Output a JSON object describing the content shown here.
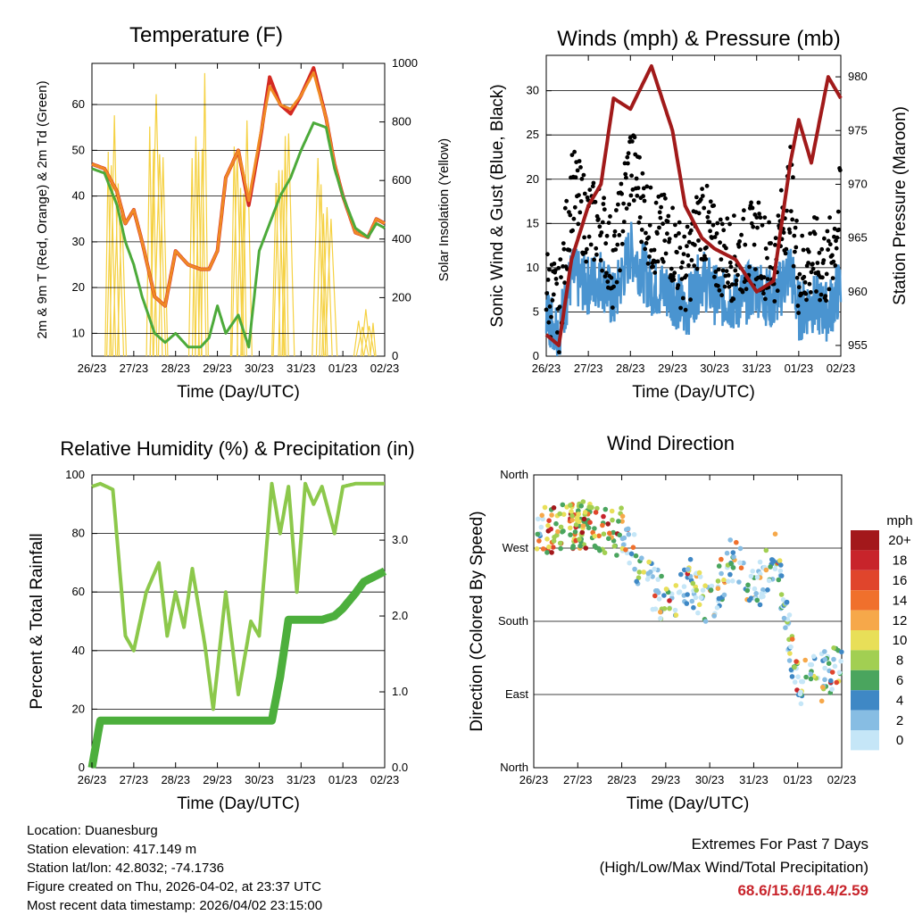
{
  "x_ticks": [
    "26/23",
    "27/23",
    "28/23",
    "29/23",
    "30/23",
    "31/23",
    "01/23",
    "02/23"
  ],
  "x_axis_label": "Time (Day/UTC)",
  "chart_data": [
    {
      "id": "temperature",
      "type": "line",
      "title": "Temperature (F)",
      "ylabel": "2m & 9m T (Red, Orange) & 2m Td (Green)",
      "ylabel_right": "Solar Insolation (Yellow)",
      "ylim": [
        5,
        69
      ],
      "yticks": [
        10,
        20,
        30,
        40,
        50,
        60
      ],
      "y2lim": [
        0,
        1000
      ],
      "y2ticks": [
        0,
        200,
        400,
        600,
        800,
        1000
      ],
      "x_days": [
        0,
        0.3,
        0.6,
        0.8,
        1.0,
        1.2,
        1.5,
        1.75,
        2.0,
        2.3,
        2.6,
        2.8,
        3.0,
        3.2,
        3.5,
        3.75,
        4.0,
        4.25,
        4.5,
        4.75,
        5.0,
        5.3,
        5.6,
        5.8,
        6.0,
        6.3,
        6.6,
        6.8,
        7.0
      ],
      "series": [
        {
          "name": "2m T",
          "color": "#d42a22",
          "values": [
            47,
            46,
            41,
            34,
            37,
            30,
            18,
            16,
            28,
            25,
            24,
            24,
            28,
            44,
            50,
            38,
            51,
            66,
            60,
            58,
            62,
            68,
            57,
            47,
            40,
            32,
            31,
            35,
            34
          ]
        },
        {
          "name": "9m T",
          "color": "#f08a24",
          "values": [
            47,
            46,
            41,
            34,
            37,
            30,
            18,
            16,
            28,
            25,
            24,
            24,
            28,
            44,
            50,
            39,
            52,
            64,
            60,
            59,
            62,
            67,
            57,
            47,
            40,
            32,
            31,
            35,
            34
          ]
        },
        {
          "name": "2m Td",
          "color": "#4caa3a",
          "values": [
            46,
            45,
            38,
            30,
            25,
            18,
            10,
            8,
            10,
            7,
            7,
            9,
            16,
            10,
            14,
            7,
            28,
            34,
            40,
            44,
            50,
            56,
            55,
            46,
            40,
            33,
            31,
            34,
            33
          ]
        }
      ],
      "solar": {
        "name": "Solar Insolation",
        "color": "#f5d142",
        "day_peaks": [
          {
            "day": 0.55,
            "peak": 870
          },
          {
            "day": 1.55,
            "peak": 920
          },
          {
            "day": 2.55,
            "peak": 1000
          },
          {
            "day": 3.55,
            "peak": 940
          },
          {
            "day": 4.55,
            "peak": 850
          },
          {
            "day": 5.55,
            "peak": 700
          },
          {
            "day": 6.55,
            "peak": 170
          }
        ]
      }
    },
    {
      "id": "winds",
      "type": "line",
      "title": "Winds (mph) & Pressure (mb)",
      "ylabel": "Sonic Wind & Gust (Blue, Black)",
      "ylabel_right": "Station Pressure (Maroon)",
      "ylim": [
        0,
        34
      ],
      "yticks": [
        0,
        5,
        10,
        15,
        20,
        25,
        30
      ],
      "y2lim": [
        954,
        982
      ],
      "y2ticks": [
        955,
        960,
        965,
        970,
        975,
        980
      ],
      "x_days": [
        0,
        0.3,
        0.6,
        1.0,
        1.3,
        1.6,
        2.0,
        2.5,
        3.0,
        3.3,
        3.7,
        4.0,
        4.5,
        5.0,
        5.4,
        5.8,
        6.0,
        6.3,
        6.7,
        7.0
      ],
      "series": [
        {
          "name": "Sonic Wind",
          "color": "#4a94d0",
          "values": [
            5,
            3,
            9,
            8,
            9,
            6,
            12,
            8,
            7,
            5,
            9,
            7,
            6,
            8,
            6,
            10,
            5,
            6,
            5,
            8
          ]
        },
        {
          "name": "Gust",
          "color": "#000000",
          "values": [
            8,
            5,
            19,
            15,
            15,
            10,
            22,
            14,
            13,
            9,
            16,
            12,
            11,
            13,
            10,
            19,
            9,
            11,
            10,
            17
          ]
        },
        {
          "name": "Station Pressure",
          "color": "#a11a1a",
          "values": [
            956,
            955,
            963,
            968,
            970,
            978,
            977,
            981,
            975,
            968,
            965,
            964,
            963,
            960,
            961,
            972,
            976,
            972,
            980,
            978
          ]
        }
      ]
    },
    {
      "id": "humidity",
      "type": "line",
      "title": "Relative Humidity (%) & Precipitation (in)",
      "ylabel": "Percent & Total Rainfall",
      "ylim": [
        0,
        100
      ],
      "yticks": [
        0,
        20,
        40,
        60,
        80,
        100
      ],
      "y2lim": [
        0,
        3.86
      ],
      "y2ticks": [
        0.0,
        1.0,
        2.0,
        3.0
      ],
      "x_days": [
        0,
        0.2,
        0.5,
        0.8,
        1.0,
        1.3,
        1.6,
        1.8,
        2.0,
        2.2,
        2.4,
        2.7,
        2.9,
        3.2,
        3.5,
        3.8,
        4.0,
        4.3,
        4.5,
        4.7,
        4.9,
        5.1,
        5.3,
        5.5,
        5.8,
        6.0,
        6.3,
        6.5,
        7.0
      ],
      "series": [
        {
          "name": "Relative Humidity",
          "color": "#8cc84b",
          "values": [
            96,
            97,
            95,
            45,
            40,
            60,
            70,
            45,
            60,
            48,
            68,
            42,
            20,
            60,
            25,
            50,
            45,
            97,
            80,
            96,
            60,
            97,
            90,
            96,
            80,
            96,
            97,
            97,
            97
          ]
        },
        {
          "name": "Total Precipitation",
          "color": "#4caf3c",
          "values": [
            0.0,
            0.62,
            0.62,
            0.62,
            0.62,
            0.62,
            0.62,
            0.62,
            0.62,
            0.62,
            0.62,
            0.62,
            0.62,
            0.62,
            0.62,
            0.62,
            0.62,
            0.62,
            1.2,
            1.95,
            1.95,
            1.95,
            1.95,
            1.95,
            2.0,
            2.1,
            2.3,
            2.45,
            2.59
          ]
        }
      ]
    },
    {
      "id": "wind-direction",
      "type": "scatter",
      "title": "Wind Direction",
      "ylabel": "Direction (Colored By Speed)",
      "yticks": [
        "North",
        "East",
        "South",
        "West",
        "North"
      ],
      "ylim_deg": [
        0,
        360
      ],
      "x_days": [
        0,
        0.5,
        1.0,
        1.5,
        2.0,
        2.5,
        3.0,
        3.5,
        4.0,
        4.5,
        5.0,
        5.5,
        6.0,
        6.5,
        7.0
      ],
      "direction_deg": [
        290,
        295,
        300,
        295,
        290,
        240,
        200,
        230,
        200,
        260,
        210,
        260,
        100,
        110,
        130
      ],
      "legend": {
        "title": "mph",
        "labels": [
          "20+",
          "18",
          "16",
          "14",
          "12",
          "10",
          "8",
          "6",
          "4",
          "2",
          "0"
        ],
        "colors": [
          "#a3181b",
          "#c8242b",
          "#e0452c",
          "#f0702c",
          "#f6a84a",
          "#e8df58",
          "#a2cf52",
          "#4aa55e",
          "#3f88c5",
          "#87bde3",
          "#c5e6f7"
        ]
      }
    }
  ],
  "station": {
    "location": "Location: Duanesburg",
    "elevation": "Station elevation: 417.149 m",
    "latlon": "Station lat/lon: 42.8032; -74.1736",
    "created": "Figure created on Thu, 2026-04-02, at 23:37 UTC",
    "latest": "Most recent data timestamp: 2026/04/02 23:15:00"
  },
  "extremes": {
    "title": "Extremes For Past 7 Days",
    "subtitle": "(High/Low/Max Wind/Total Precipitation)",
    "values": "68.6/15.6/16.4/2.59"
  }
}
